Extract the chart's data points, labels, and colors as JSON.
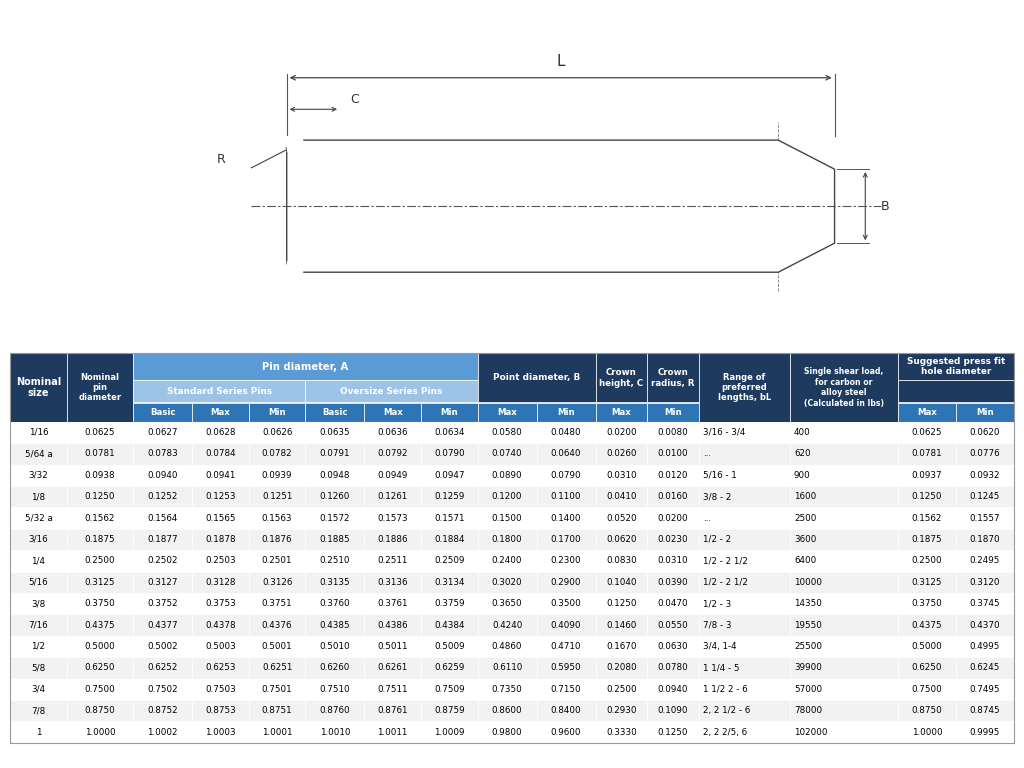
{
  "bg_color": "#ffffff",
  "header_dark": "#1e3a5f",
  "header_mid": "#2e75b6",
  "header_light": "#5b9bd5",
  "header_lighter": "#9dc3e6",
  "row_alt": "#f2f2f2",
  "row_white": "#ffffff",
  "text_light": "#ffffff",
  "text_dark": "#000000",
  "rows": [
    [
      "1/16",
      "0.0625",
      "0.0627",
      "0.0628",
      "0.0626",
      "0.0635",
      "0.0636",
      "0.0634",
      "0.0580",
      "0.0480",
      "0.0200",
      "0.0080",
      "3/16 - 3/4",
      "400",
      "0.0625",
      "0.0620"
    ],
    [
      "5/64 a",
      "0.0781",
      "0.0783",
      "0.0784",
      "0.0782",
      "0.0791",
      "0.0792",
      "0.0790",
      "0.0740",
      "0.0640",
      "0.0260",
      "0.0100",
      "...",
      "620",
      "0.0781",
      "0.0776"
    ],
    [
      "3/32",
      "0.0938",
      "0.0940",
      "0.0941",
      "0.0939",
      "0.0948",
      "0.0949",
      "0.0947",
      "0.0890",
      "0.0790",
      "0.0310",
      "0.0120",
      "5/16 - 1",
      "900",
      "0.0937",
      "0.0932"
    ],
    [
      "1/8",
      "0.1250",
      "0.1252",
      "0.1253",
      "0.1251",
      "0.1260",
      "0.1261",
      "0.1259",
      "0.1200",
      "0.1100",
      "0.0410",
      "0.0160",
      "3/8 - 2",
      "1600",
      "0.1250",
      "0.1245"
    ],
    [
      "5/32 a",
      "0.1562",
      "0.1564",
      "0.1565",
      "0.1563",
      "0.1572",
      "0.1573",
      "0.1571",
      "0.1500",
      "0.1400",
      "0.0520",
      "0.0200",
      "...",
      "2500",
      "0.1562",
      "0.1557"
    ],
    [
      "3/16",
      "0.1875",
      "0.1877",
      "0.1878",
      "0.1876",
      "0.1885",
      "0.1886",
      "0.1884",
      "0.1800",
      "0.1700",
      "0.0620",
      "0.0230",
      "1/2 - 2",
      "3600",
      "0.1875",
      "0.1870"
    ],
    [
      "1/4",
      "0.2500",
      "0.2502",
      "0.2503",
      "0.2501",
      "0.2510",
      "0.2511",
      "0.2509",
      "0.2400",
      "0.2300",
      "0.0830",
      "0.0310",
      "1/2 - 2 1/2",
      "6400",
      "0.2500",
      "0.2495"
    ],
    [
      "5/16",
      "0.3125",
      "0.3127",
      "0.3128",
      "0.3126",
      "0.3135",
      "0.3136",
      "0.3134",
      "0.3020",
      "0.2900",
      "0.1040",
      "0.0390",
      "1/2 - 2 1/2",
      "10000",
      "0.3125",
      "0.3120"
    ],
    [
      "3/8",
      "0.3750",
      "0.3752",
      "0.3753",
      "0.3751",
      "0.3760",
      "0.3761",
      "0.3759",
      "0.3650",
      "0.3500",
      "0.1250",
      "0.0470",
      "1/2 - 3",
      "14350",
      "0.3750",
      "0.3745"
    ],
    [
      "7/16",
      "0.4375",
      "0.4377",
      "0.4378",
      "0.4376",
      "0.4385",
      "0.4386",
      "0.4384",
      "0.4240",
      "0.4090",
      "0.1460",
      "0.0550",
      "7/8 - 3",
      "19550",
      "0.4375",
      "0.4370"
    ],
    [
      "1/2",
      "0.5000",
      "0.5002",
      "0.5003",
      "0.5001",
      "0.5010",
      "0.5011",
      "0.5009",
      "0.4860",
      "0.4710",
      "0.1670",
      "0.0630",
      "3/4, 1-4",
      "25500",
      "0.5000",
      "0.4995"
    ],
    [
      "5/8",
      "0.6250",
      "0.6252",
      "0.6253",
      "0.6251",
      "0.6260",
      "0.6261",
      "0.6259",
      "0.6110",
      "0.5950",
      "0.2080",
      "0.0780",
      "1 1/4 - 5",
      "39900",
      "0.6250",
      "0.6245"
    ],
    [
      "3/4",
      "0.7500",
      "0.7502",
      "0.7503",
      "0.7501",
      "0.7510",
      "0.7511",
      "0.7509",
      "0.7350",
      "0.7150",
      "0.2500",
      "0.0940",
      "1 1/2 2 - 6",
      "57000",
      "0.7500",
      "0.7495"
    ],
    [
      "7/8",
      "0.8750",
      "0.8752",
      "0.8753",
      "0.8751",
      "0.8760",
      "0.8761",
      "0.8759",
      "0.8600",
      "0.8400",
      "0.2930",
      "0.1090",
      "2, 2 1/2 - 6",
      "78000",
      "0.8750",
      "0.8745"
    ],
    [
      "1",
      "1.0000",
      "1.0002",
      "1.0003",
      "1.0001",
      "1.0010",
      "1.0011",
      "1.0009",
      "0.9800",
      "0.9600",
      "0.3330",
      "0.1250",
      "2, 2 2/5, 6",
      "102000",
      "1.0000",
      "0.9995"
    ]
  ]
}
